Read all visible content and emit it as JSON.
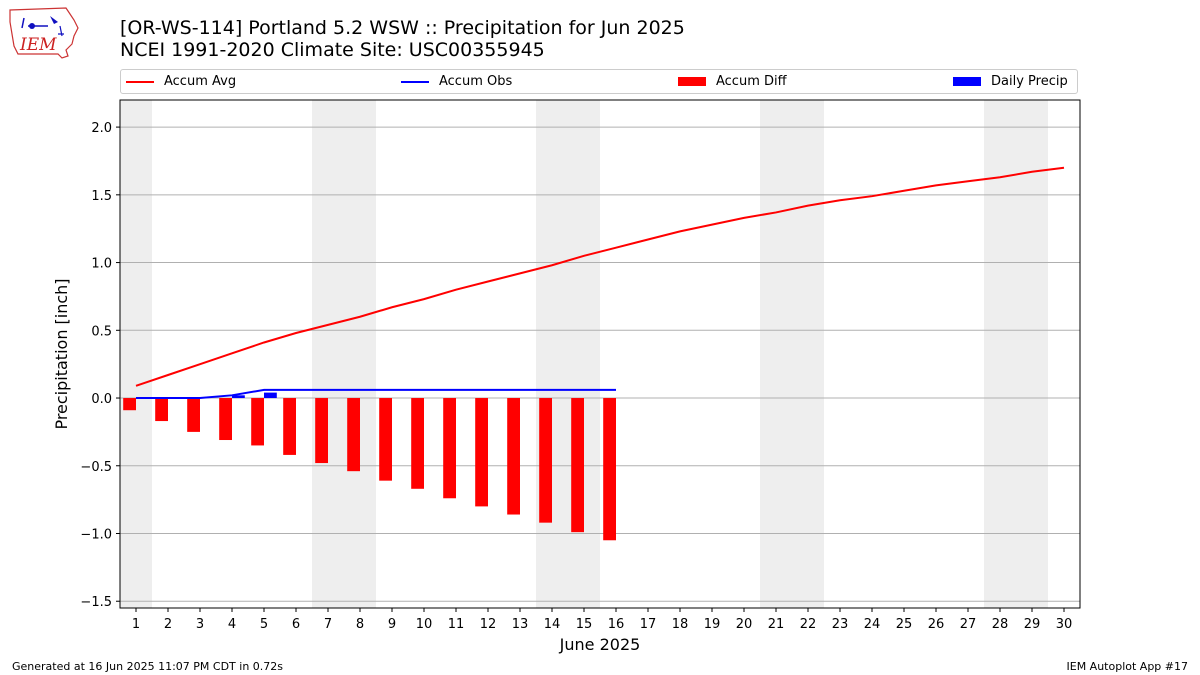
{
  "title_line1": "[OR-WS-114] Portland 5.2 WSW :: Precipitation for Jun 2025",
  "title_line2": "NCEI 1991-2020 Climate Site: USC00355945",
  "logo_text": "IEM",
  "footer_left": "Generated at 16 Jun 2025 11:07 PM CDT in 0.72s",
  "footer_right": "IEM Autoplot App #17",
  "colors": {
    "avg": "#ff0000",
    "obs": "#0000ff",
    "diff": "#ff0000",
    "daily": "#0000ff",
    "weekend": "#eeeeee",
    "grid": "#b0b0b0"
  },
  "legend": {
    "avg": "Accum Avg",
    "obs": "Accum Obs",
    "diff": "Accum Diff",
    "daily": "Daily Precip"
  },
  "chart_data": {
    "type": "line",
    "xlabel": "June 2025",
    "ylabel": "Precipitation [inch]",
    "x": [
      1,
      2,
      3,
      4,
      5,
      6,
      7,
      8,
      9,
      10,
      11,
      12,
      13,
      14,
      15,
      16,
      17,
      18,
      19,
      20,
      21,
      22,
      23,
      24,
      25,
      26,
      27,
      28,
      29,
      30
    ],
    "xlim": [
      0.5,
      30.5
    ],
    "ylim": [
      -1.55,
      2.2
    ],
    "yticks": [
      -1.5,
      -1.0,
      -0.5,
      0.0,
      0.5,
      1.0,
      1.5,
      2.0
    ],
    "ytick_labels": [
      "−1.5",
      "−1.0",
      "−0.5",
      "0.0",
      "0.5",
      "1.0",
      "1.5",
      "2.0"
    ],
    "weekend_days": [
      1,
      7,
      8,
      14,
      15,
      21,
      22,
      28,
      29
    ],
    "grid": "horizontal",
    "legend_position": "top",
    "accum_avg": [
      0.09,
      0.17,
      0.25,
      0.33,
      0.41,
      0.48,
      0.54,
      0.6,
      0.67,
      0.73,
      0.8,
      0.86,
      0.92,
      0.98,
      1.05,
      1.11,
      1.17,
      1.23,
      1.28,
      1.33,
      1.37,
      1.42,
      1.46,
      1.49,
      1.53,
      1.57,
      1.6,
      1.63,
      1.67,
      1.7
    ],
    "accum_obs": [
      0.0,
      0.0,
      0.0,
      0.02,
      0.06,
      0.06,
      0.06,
      0.06,
      0.06,
      0.06,
      0.06,
      0.06,
      0.06,
      0.06,
      0.06,
      0.06
    ],
    "accum_diff": [
      -0.09,
      -0.17,
      -0.25,
      -0.31,
      -0.35,
      -0.42,
      -0.48,
      -0.54,
      -0.61,
      -0.67,
      -0.74,
      -0.8,
      -0.86,
      -0.92,
      -0.99,
      -1.05
    ],
    "daily_precip": [
      0.0,
      0.0,
      0.0,
      0.02,
      0.04,
      0.0,
      0.0,
      0.0,
      0.0,
      0.0,
      0.0,
      0.0,
      0.0,
      0.0,
      0.0,
      0.0
    ]
  }
}
